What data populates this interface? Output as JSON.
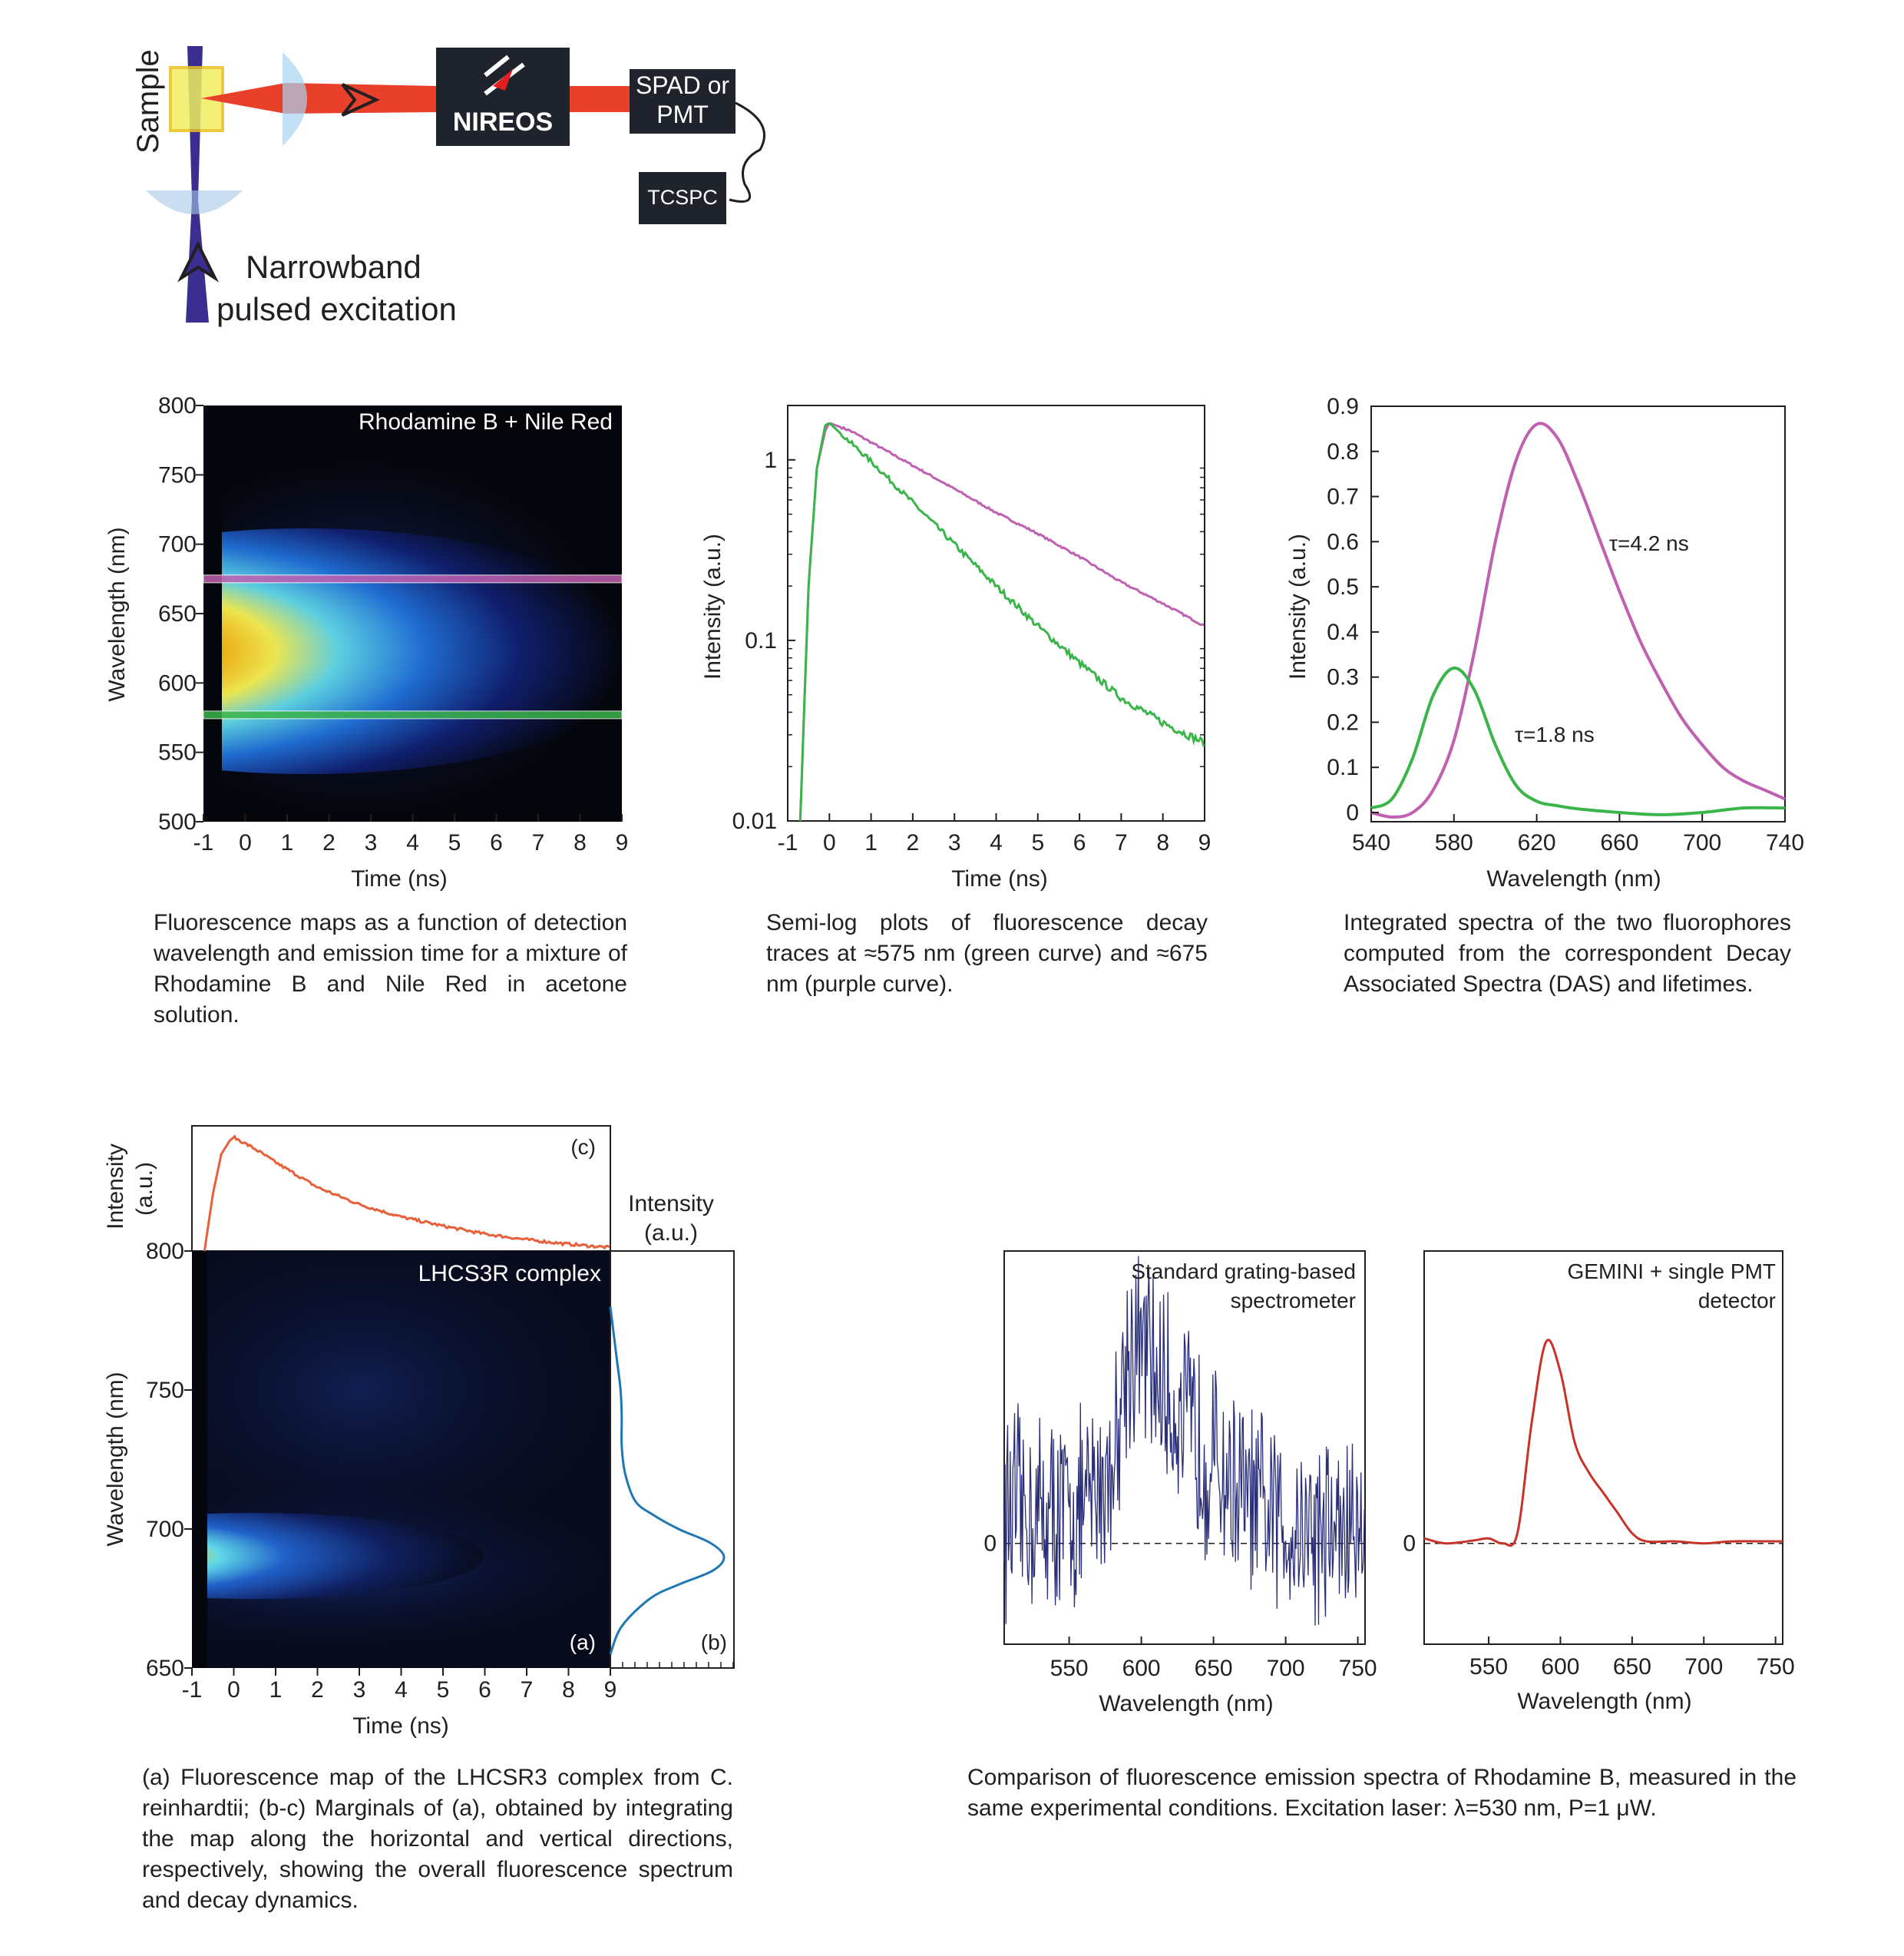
{
  "colors": {
    "green_curve": "#3ab54a",
    "purple_curve": "#c060b0",
    "orange_curve": "#e8603a",
    "blue_marginal": "#1e78b4",
    "navy_noise": "#2a2f78",
    "red_spectrum": "#c83228",
    "laser_red": "#e8402a",
    "excitation_violet": "#3a2e90",
    "detector_box": "#1f232c"
  },
  "setup": {
    "sample_label": "Sample",
    "brand_logo": "NIREOS",
    "detector_label_1": "SPAD or",
    "detector_label_2": "PMT",
    "tcspc_label": "TCSPC",
    "excitation_label_1": "Narrowband",
    "excitation_label_2": "pulsed excitation",
    "icons": [
      "lens-icon",
      "arrow-icon",
      "nireos-logo-icon",
      "cable-icon"
    ]
  },
  "captions": {
    "map1": "Fluorescence maps as a function of detection wavelength and emission time for a mixture of Rhodamine B and Nile Red in acetone solution.",
    "decay": "Semi-log plots of fluorescence decay traces at ≈575 nm (green curve) and ≈675 nm (purple curve).",
    "das": "Integrated spectra of the two fluorophores computed from the correspondent Decay Associated Spectra (DAS) and lifetimes.",
    "map2": "(a) Fluorescence map of the LHCSR3 complex from C. reinhardtii; (b-c) Marginals of (a), obtained by integrating the map along the horizontal and vertical directions, respectively, showing the overall fluorescence spectrum and decay dynamics.",
    "compare": "Comparison of fluorescence emission spectra of Rhodamine B, measured in the same experimental conditions. Excitation laser: λ=530 nm, P=1 μW."
  },
  "chart_data": [
    {
      "id": "map1",
      "type": "heatmap",
      "annotation": "Rhodamine B + Nile Red",
      "xlabel": "Time (ns)",
      "ylabel": "Wavelength (nm)",
      "xlim": [
        -1,
        9
      ],
      "ylim": [
        500,
        800
      ],
      "xticks": [
        -1,
        0,
        1,
        2,
        3,
        4,
        5,
        6,
        7,
        8,
        9
      ],
      "yticks": [
        500,
        550,
        600,
        650,
        700,
        750,
        800
      ],
      "peak": {
        "time": 0.5,
        "wavelength": 625
      },
      "slices": [
        {
          "wavelength": 675,
          "color": "purple"
        },
        {
          "wavelength": 577,
          "color": "green"
        }
      ]
    },
    {
      "id": "decay",
      "type": "line",
      "scale_y": "log",
      "xlabel": "Time (ns)",
      "ylabel": "Intensity (a.u.)",
      "xlim": [
        -1,
        9
      ],
      "ylim": [
        0.01,
        2
      ],
      "xticks": [
        -1,
        0,
        1,
        2,
        3,
        4,
        5,
        6,
        7,
        8,
        9
      ],
      "yticks": [
        {
          "value": 1,
          "label": "1"
        },
        {
          "value": 0.1,
          "label": "0.1"
        },
        {
          "value": 0.01,
          "label": "0.01"
        }
      ],
      "series": [
        {
          "color": "purple",
          "x": [
            -0.7,
            -0.5,
            -0.3,
            -0.1,
            0,
            0.5,
            1,
            2,
            3,
            4,
            5,
            6,
            7,
            8,
            9
          ],
          "y": [
            0.01,
            0.2,
            0.9,
            1.45,
            1.6,
            1.45,
            1.25,
            0.93,
            0.69,
            0.51,
            0.39,
            0.29,
            0.21,
            0.16,
            0.12
          ]
        },
        {
          "color": "green",
          "x": [
            -0.7,
            -0.5,
            -0.3,
            -0.1,
            0,
            0.5,
            1,
            2,
            3,
            4,
            5,
            6,
            7,
            8,
            9
          ],
          "y": [
            0.01,
            0.2,
            0.9,
            1.55,
            1.6,
            1.25,
            0.98,
            0.58,
            0.34,
            0.2,
            0.12,
            0.075,
            0.048,
            0.035,
            0.027
          ]
        }
      ]
    },
    {
      "id": "das",
      "type": "line",
      "xlabel": "Wavelength (nm)",
      "ylabel": "Intensity (a.u.)",
      "xlim": [
        540,
        740
      ],
      "ylim": [
        0,
        0.9
      ],
      "xticks": [
        540,
        580,
        620,
        660,
        700,
        740
      ],
      "yticks": [
        0,
        0.1,
        0.2,
        0.3,
        0.4,
        0.5,
        0.6,
        0.7,
        0.8,
        0.9
      ],
      "annotations": [
        {
          "text": "τ=4.2 ns",
          "x": 657,
          "y": 0.59
        },
        {
          "text": "τ=1.8 ns",
          "x": 617,
          "y": 0.16
        }
      ],
      "series": [
        {
          "color": "purple",
          "x": [
            540,
            550,
            560,
            570,
            580,
            590,
            600,
            610,
            620,
            630,
            640,
            650,
            660,
            670,
            680,
            690,
            700,
            710,
            720,
            730,
            740
          ],
          "y": [
            0,
            -0.01,
            0.0,
            0.05,
            0.16,
            0.36,
            0.6,
            0.78,
            0.86,
            0.83,
            0.73,
            0.61,
            0.49,
            0.38,
            0.29,
            0.21,
            0.15,
            0.1,
            0.07,
            0.05,
            0.03
          ]
        },
        {
          "color": "green",
          "x": [
            540,
            550,
            560,
            570,
            580,
            590,
            600,
            610,
            620,
            630,
            640,
            660,
            680,
            700,
            720,
            740
          ],
          "y": [
            0.01,
            0.03,
            0.12,
            0.26,
            0.32,
            0.27,
            0.15,
            0.06,
            0.025,
            0.015,
            0.008,
            0.0,
            -0.005,
            0.0,
            0.01,
            0.01
          ]
        }
      ]
    },
    {
      "id": "lhcsr3",
      "type": "heatmap",
      "annotation": "LHCS3R complex",
      "panel_labels": [
        "(a)",
        "(b)",
        "(c)"
      ],
      "xlabel": "Time (ns)",
      "ylabel": "Wavelength (nm)",
      "top_ylabel": [
        "Intensity",
        "(a.u.)"
      ],
      "right_title": [
        "Intensity",
        "(a.u.)"
      ],
      "xlim": [
        -1,
        9
      ],
      "ylim": [
        650,
        800
      ],
      "xticks": [
        -1,
        0,
        1,
        2,
        3,
        4,
        5,
        6,
        7,
        8,
        9
      ],
      "yticks": [
        650,
        700,
        750,
        800
      ],
      "peak": {
        "time": 0,
        "wavelength": 690
      },
      "time_marginal": {
        "x": [
          -0.7,
          -0.5,
          -0.3,
          -0.1,
          0.0,
          0.5,
          1,
          2,
          3,
          4,
          5,
          6,
          7,
          8,
          9
        ],
        "y": [
          0.0,
          0.5,
          0.85,
          0.97,
          1.0,
          0.9,
          0.78,
          0.56,
          0.41,
          0.3,
          0.22,
          0.15,
          0.1,
          0.06,
          0.03
        ]
      },
      "spectral_marginal": {
        "wavelength": [
          655,
          665,
          675,
          680,
          685,
          690,
          695,
          700,
          705,
          710,
          720,
          730,
          740,
          750,
          760,
          770,
          780
        ],
        "intensity": [
          0.0,
          0.1,
          0.35,
          0.6,
          0.9,
          1.0,
          0.88,
          0.6,
          0.38,
          0.22,
          0.13,
          0.1,
          0.1,
          0.09,
          0.06,
          0.03,
          0.0
        ]
      }
    },
    {
      "id": "grating",
      "type": "line",
      "annotation": [
        "Standard grating-based",
        "spectrometer"
      ],
      "xlabel": "Wavelength (nm)",
      "xlim": [
        505,
        755
      ],
      "xticks": [
        550,
        600,
        650,
        700,
        750
      ],
      "yticks": [
        {
          "value": 0,
          "label": "0"
        }
      ],
      "ylim": [
        -1,
        2.9
      ],
      "envelope": {
        "x": [
          505,
          560,
          580,
          590,
          600,
          620,
          650,
          680,
          700,
          755
        ],
        "y": [
          0.3,
          0.3,
          0.8,
          1.9,
          1.95,
          1.4,
          0.8,
          0.3,
          0.2,
          0.1
        ]
      }
    },
    {
      "id": "gemini",
      "type": "line",
      "annotation": [
        "GEMINI + single PMT",
        "detector"
      ],
      "xlabel": "Wavelength (nm)",
      "xlim": [
        505,
        755
      ],
      "xticks": [
        550,
        600,
        650,
        700,
        750
      ],
      "yticks": [
        {
          "value": 0,
          "label": "0"
        }
      ],
      "ylim": [
        -1,
        2.9
      ],
      "series": [
        {
          "color": "red",
          "x": [
            505,
            520,
            540,
            550,
            560,
            570,
            580,
            590,
            600,
            610,
            620,
            630,
            640,
            650,
            660,
            680,
            700,
            720,
            755
          ],
          "y": [
            0.05,
            0.0,
            0.03,
            0.05,
            0.0,
            0.1,
            1.2,
            2.0,
            1.7,
            1.0,
            0.7,
            0.5,
            0.3,
            0.1,
            0.02,
            0.02,
            0.0,
            0.02,
            0.02
          ]
        }
      ]
    }
  ]
}
